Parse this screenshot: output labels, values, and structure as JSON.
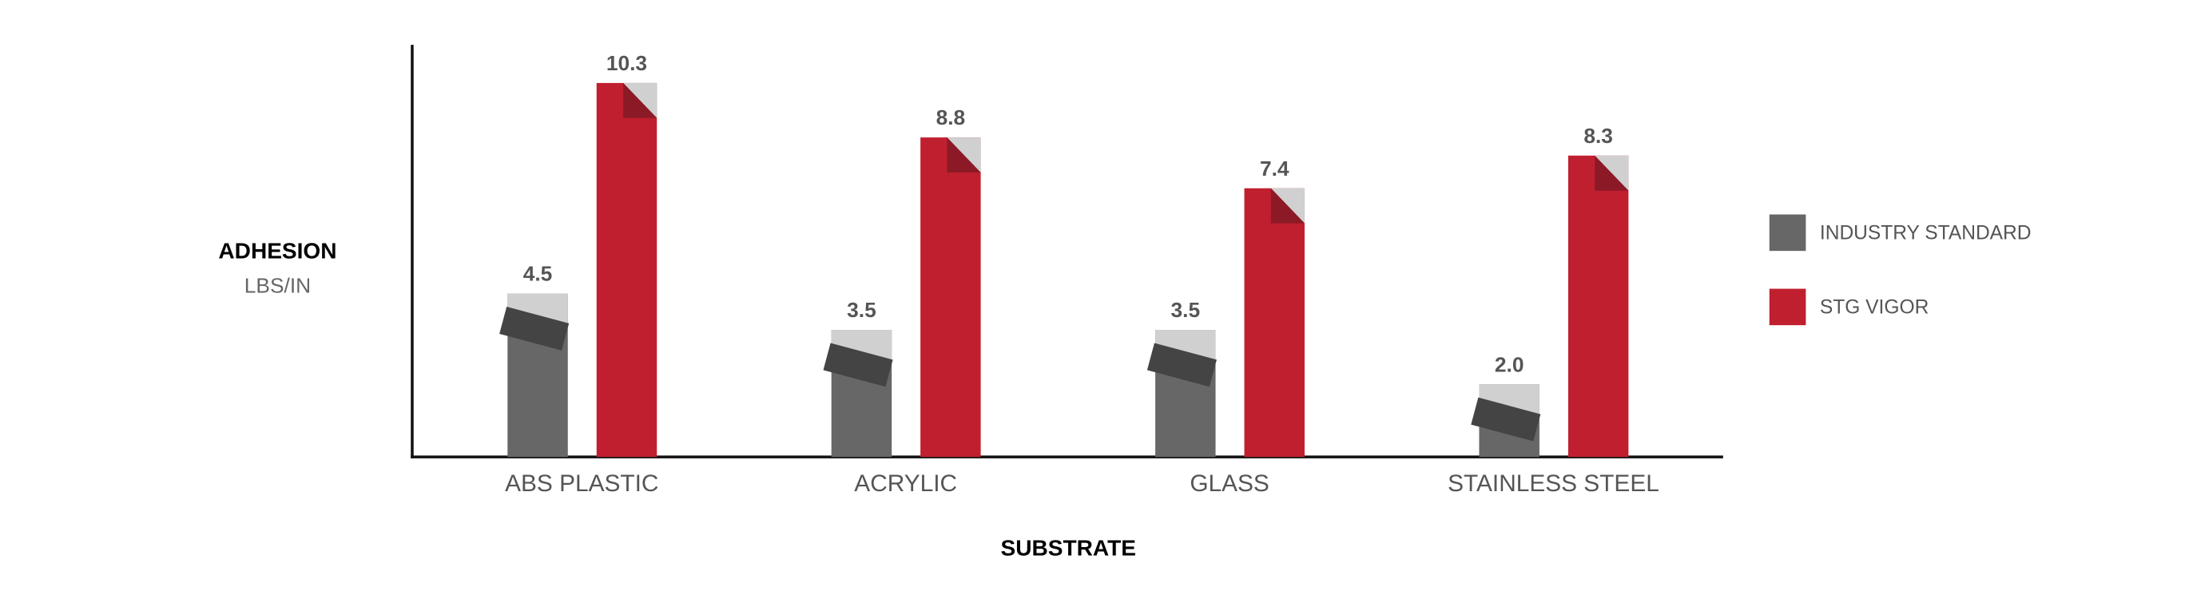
{
  "chart_data": {
    "type": "bar",
    "y_label": "ADHESION",
    "y_unit": "LBS/IN",
    "x_label": "SUBSTRATE",
    "categories": [
      "ABS PLASTIC",
      "ACRYLIC",
      "GLASS",
      "STAINLESS STEEL"
    ],
    "series": [
      {
        "name": "INDUSTRY STANDARD",
        "color": "#676767",
        "values": [
          4.5,
          3.5,
          3.5,
          2.0
        ],
        "value_labels": [
          "4.5",
          "3.5",
          "3.5",
          "2.0"
        ]
      },
      {
        "name": "STG VIGOR",
        "color": "#c01f2f",
        "values": [
          10.3,
          8.8,
          7.4,
          8.3
        ],
        "value_labels": [
          "10.3",
          "8.8",
          "7.4",
          "8.3"
        ]
      }
    ],
    "ylim": [
      0,
      11.35
    ],
    "legend": "right"
  }
}
